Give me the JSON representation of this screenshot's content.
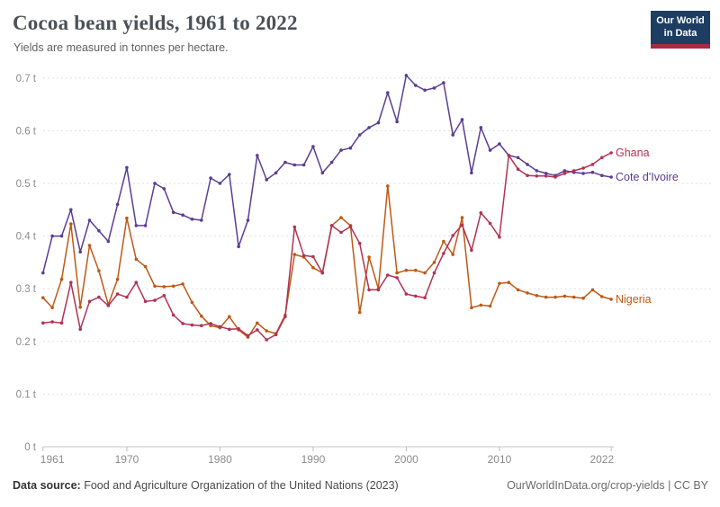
{
  "header": {
    "logo": {
      "line1": "Our World",
      "line2": "in Data",
      "bg": "#1d3d63",
      "accent": "#a52b43"
    }
  },
  "footer": {
    "source_label": "Data source:",
    "source_text": " Food and Agriculture Organization of the United Nations (2023)",
    "credit": "OurWorldInData.org/crop-yields | CC BY"
  },
  "chart_data": {
    "type": "line",
    "title": "Cocoa bean yields, 1961 to 2022",
    "subtitle": "Yields are measured in tonnes per hectare.",
    "unit": "t",
    "xlim": [
      1961,
      2022
    ],
    "ylim": [
      0,
      0.7
    ],
    "grid": true,
    "legend_position": "right-end-labels",
    "x_ticks": [
      1961,
      1970,
      1980,
      1990,
      2000,
      2010,
      2022
    ],
    "y_ticks": [
      0,
      0.1,
      0.2,
      0.3,
      0.4,
      0.5,
      0.6,
      0.7
    ],
    "x": [
      1961,
      1962,
      1963,
      1964,
      1965,
      1966,
      1967,
      1968,
      1969,
      1970,
      1971,
      1972,
      1973,
      1974,
      1975,
      1976,
      1977,
      1978,
      1979,
      1980,
      1981,
      1982,
      1983,
      1984,
      1985,
      1986,
      1987,
      1988,
      1989,
      1990,
      1991,
      1992,
      1993,
      1994,
      1995,
      1996,
      1997,
      1998,
      1999,
      2000,
      2001,
      2002,
      2003,
      2004,
      2005,
      2006,
      2007,
      2008,
      2009,
      2010,
      2011,
      2012,
      2013,
      2014,
      2015,
      2016,
      2017,
      2018,
      2019,
      2020,
      2021,
      2022
    ],
    "series": [
      {
        "name": "Cote d'Ivoire",
        "color": "#5b3d92",
        "values": [
          0.33,
          0.4,
          0.4,
          0.45,
          0.37,
          0.43,
          0.41,
          0.39,
          0.46,
          0.53,
          0.42,
          0.42,
          0.5,
          0.49,
          0.445,
          0.44,
          0.432,
          0.43,
          0.51,
          0.5,
          0.517,
          0.38,
          0.43,
          0.553,
          0.507,
          0.52,
          0.54,
          0.535,
          0.535,
          0.57,
          0.52,
          0.54,
          0.563,
          0.567,
          0.592,
          0.606,
          0.615,
          0.672,
          0.617,
          0.705,
          0.686,
          0.677,
          0.681,
          0.691,
          0.592,
          0.621,
          0.52,
          0.606,
          0.563,
          0.575,
          0.553,
          0.549,
          0.536,
          0.524,
          0.519,
          0.515,
          0.524,
          0.521,
          0.519,
          0.521,
          0.515,
          0.512
        ]
      },
      {
        "name": "Nigeria",
        "color": "#be5915",
        "values": [
          0.283,
          0.264,
          0.318,
          0.423,
          0.265,
          0.382,
          0.334,
          0.27,
          0.318,
          0.434,
          0.356,
          0.342,
          0.305,
          0.304,
          0.305,
          0.309,
          0.274,
          0.248,
          0.23,
          0.226,
          0.247,
          0.222,
          0.208,
          0.235,
          0.22,
          0.215,
          0.25,
          0.365,
          0.36,
          0.34,
          0.33,
          0.42,
          0.435,
          0.42,
          0.255,
          0.36,
          0.3,
          0.495,
          0.33,
          0.335,
          0.335,
          0.33,
          0.35,
          0.39,
          0.365,
          0.435,
          0.264,
          0.269,
          0.267,
          0.31,
          0.312,
          0.298,
          0.292,
          0.287,
          0.284,
          0.284,
          0.286,
          0.284,
          0.282,
          0.298,
          0.285,
          0.28
        ]
      },
      {
        "name": "Ghana",
        "color": "#b13254",
        "values": [
          0.235,
          0.237,
          0.235,
          0.312,
          0.223,
          0.276,
          0.284,
          0.268,
          0.29,
          0.284,
          0.312,
          0.276,
          0.278,
          0.287,
          0.25,
          0.234,
          0.231,
          0.23,
          0.234,
          0.228,
          0.223,
          0.224,
          0.211,
          0.222,
          0.203,
          0.213,
          0.247,
          0.417,
          0.363,
          0.361,
          0.33,
          0.42,
          0.407,
          0.418,
          0.386,
          0.298,
          0.298,
          0.326,
          0.321,
          0.29,
          0.286,
          0.283,
          0.33,
          0.367,
          0.401,
          0.421,
          0.373,
          0.444,
          0.424,
          0.398,
          0.553,
          0.527,
          0.515,
          0.514,
          0.514,
          0.512,
          0.519,
          0.524,
          0.529,
          0.536,
          0.549,
          0.558
        ]
      }
    ]
  }
}
